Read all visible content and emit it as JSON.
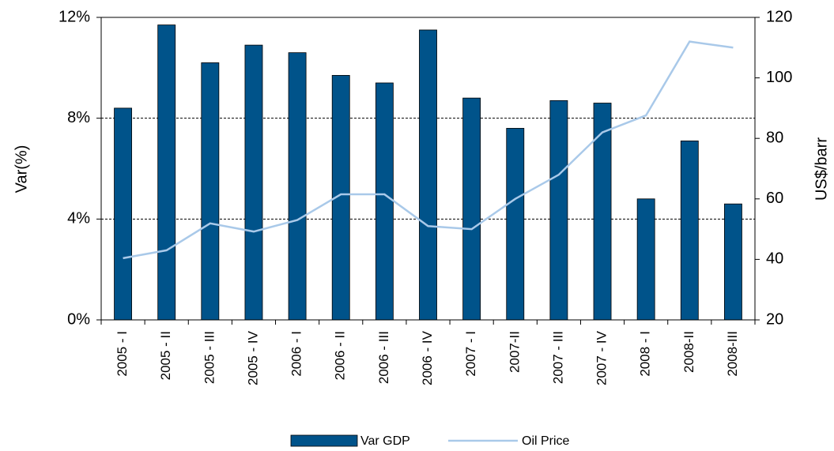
{
  "chart_data": {
    "type": "bar_line",
    "categories": [
      "2005 - I",
      "2005 - II",
      "2005 - III",
      "2005 - IV",
      "2006 - I",
      "2006 - II",
      "2006 - III",
      "2006 - IV",
      "2007 - I",
      "2007-II",
      "2007 - III",
      "2007 - IV",
      "2008 - I",
      "2008-II",
      "2008-III"
    ],
    "series": [
      {
        "name": "Var GDP",
        "type": "bar",
        "color": "#00538a",
        "values": [
          8.4,
          11.7,
          10.2,
          10.9,
          10.6,
          9.7,
          9.4,
          11.5,
          8.8,
          7.6,
          8.7,
          8.6,
          4.8,
          7.1,
          4.6
        ]
      },
      {
        "name": "Oil Price",
        "type": "line",
        "axis": "y2",
        "color": "#a9c9e9",
        "values": [
          40.4,
          43,
          51.9,
          49.2,
          53,
          61.5,
          61.5,
          51,
          50,
          60,
          68,
          82,
          87.6,
          112,
          110
        ]
      }
    ],
    "ylabel": "Var(%)",
    "y2label": "US$/barr",
    "ylim": [
      0,
      12
    ],
    "yticks": [
      {
        "value": 0,
        "label": "0%"
      },
      {
        "value": 4,
        "label": "4%"
      },
      {
        "value": 8,
        "label": "8%"
      },
      {
        "value": 12,
        "label": "12%"
      }
    ],
    "y2lim": [
      20,
      120
    ],
    "y2ticks": [
      20,
      40,
      60,
      80,
      100,
      120
    ],
    "grid": true,
    "legend": "bottom"
  }
}
